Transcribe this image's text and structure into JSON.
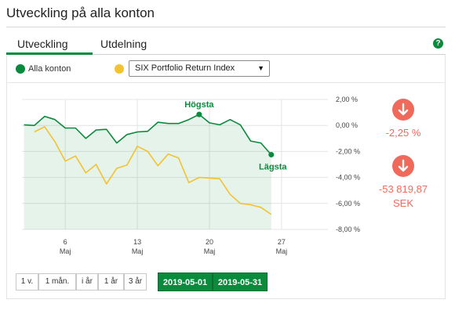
{
  "page": {
    "title": "Utveckling på alla konton"
  },
  "tabs": [
    {
      "label": "Utveckling",
      "active": true
    },
    {
      "label": "Utdelning",
      "active": false
    }
  ],
  "help": {
    "icon": "help-icon",
    "glyph": "?"
  },
  "legend": {
    "series1_label": "Alla konton",
    "index_select": {
      "value": "SIX Portfolio Return Index"
    }
  },
  "stats": {
    "change_pct": "-2,25 %",
    "change_sek_value": "-53 819,87",
    "change_sek_unit": "SEK"
  },
  "ranges": [
    "1 v.",
    "1 mån.",
    "i år",
    "1 år",
    "3 år"
  ],
  "date_range": {
    "from": "2019-05-01",
    "to": "2019-05-31"
  },
  "colors": {
    "accent": "#0a8a3c",
    "index": "#f2c230",
    "negative": "#f06a5c"
  },
  "chart_data": {
    "type": "line",
    "ylim": [
      -8,
      2
    ],
    "y_ticks": [
      "2,00 %",
      "0,00 %",
      "-2,00 %",
      "-4,00 %",
      "-6,00 %",
      "-8,00 %"
    ],
    "x_ticks": [
      {
        "day": 6,
        "line1": "6",
        "line2": "Maj"
      },
      {
        "day": 13,
        "line1": "13",
        "line2": "Maj"
      },
      {
        "day": 20,
        "line1": "20",
        "line2": "Maj"
      },
      {
        "day": 27,
        "line1": "27",
        "line2": "Maj"
      }
    ],
    "xlim": [
      1.8,
      31.5
    ],
    "series": [
      {
        "name": "Alla konton",
        "color": "#0a8a3c",
        "area": true,
        "points": [
          [
            2,
            0.05
          ],
          [
            3,
            0.0
          ],
          [
            4,
            0.7
          ],
          [
            5,
            0.45
          ],
          [
            6,
            -0.2
          ],
          [
            7,
            -0.2
          ],
          [
            8,
            -1.0
          ],
          [
            9,
            -0.35
          ],
          [
            10,
            -0.3
          ],
          [
            11,
            -1.35
          ],
          [
            12,
            -0.7
          ],
          [
            13,
            -0.5
          ],
          [
            14,
            -0.45
          ],
          [
            15,
            0.25
          ],
          [
            16,
            0.15
          ],
          [
            17,
            0.15
          ],
          [
            18,
            0.45
          ],
          [
            19,
            0.85
          ],
          [
            20,
            0.2
          ],
          [
            21,
            0.05
          ],
          [
            22,
            0.45
          ],
          [
            23,
            0.05
          ],
          [
            24,
            -1.2
          ],
          [
            25,
            -1.35
          ],
          [
            26,
            -2.25
          ]
        ]
      },
      {
        "name": "SIX Portfolio Return Index",
        "color": "#f2c230",
        "area": false,
        "points": [
          [
            3,
            -0.5
          ],
          [
            4,
            -0.1
          ],
          [
            5,
            -1.25
          ],
          [
            6,
            -2.75
          ],
          [
            7,
            -2.35
          ],
          [
            8,
            -3.65
          ],
          [
            9,
            -3.0
          ],
          [
            10,
            -4.5
          ],
          [
            11,
            -3.3
          ],
          [
            12,
            -3.05
          ],
          [
            13,
            -1.6
          ],
          [
            14,
            -2.0
          ],
          [
            15,
            -3.1
          ],
          [
            16,
            -2.2
          ],
          [
            17,
            -2.5
          ],
          [
            18,
            -4.4
          ],
          [
            19,
            -4.0
          ],
          [
            20,
            -4.05
          ],
          [
            21,
            -4.1
          ],
          [
            22,
            -5.3
          ],
          [
            23,
            -6.0
          ],
          [
            24,
            -6.1
          ],
          [
            25,
            -6.3
          ],
          [
            26,
            -6.85
          ]
        ]
      }
    ],
    "annotations": [
      {
        "label": "Högsta",
        "x": 19,
        "y": 0.85
      },
      {
        "label": "Lägsta",
        "x": 26,
        "y": -2.25
      }
    ]
  }
}
